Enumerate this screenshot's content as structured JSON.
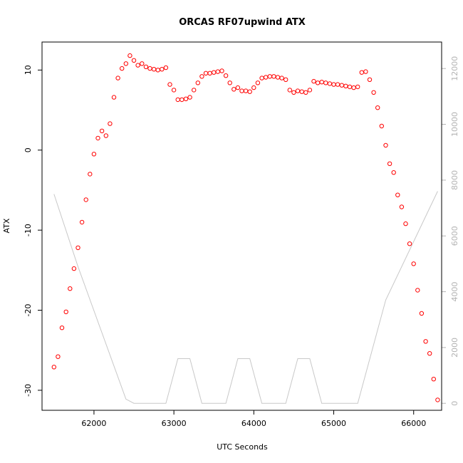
{
  "chart_data": {
    "type": "scatter",
    "title": "ORCAS RF07upwind ATX",
    "xlabel": "UTC Seconds",
    "ylabel": "ATX",
    "xlim": [
      61350,
      66350
    ],
    "ylim": [
      -32.5,
      13.5
    ],
    "y2lim": [
      -250,
      12950
    ],
    "x_ticks": [
      62000,
      63000,
      64000,
      65000,
      66000
    ],
    "y_ticks": [
      10,
      0,
      -10,
      -20,
      -30
    ],
    "y2_ticks": [
      0,
      2000,
      4000,
      6000,
      8000,
      10000,
      12000
    ],
    "colors": {
      "points": "#ff0000",
      "altitude_line": "#c8c8c8",
      "right_axis": "#b3b3b3",
      "frame": "#000000"
    },
    "series": [
      {
        "marker": "open-circle",
        "color": "#ff0000",
        "points": [
          [
            61500,
            -27.1
          ],
          [
            61550,
            -25.8
          ],
          [
            61600,
            -22.2
          ],
          [
            61650,
            -20.2
          ],
          [
            61700,
            -17.3
          ],
          [
            61750,
            -14.8
          ],
          [
            61800,
            -12.2
          ],
          [
            61850,
            -9.0
          ],
          [
            61900,
            -6.2
          ],
          [
            61950,
            -3.0
          ],
          [
            62000,
            -0.5
          ],
          [
            62050,
            1.5
          ],
          [
            62100,
            2.4
          ],
          [
            62150,
            1.8
          ],
          [
            62200,
            3.3
          ],
          [
            62250,
            6.6
          ],
          [
            62300,
            9.0
          ],
          [
            62350,
            10.2
          ],
          [
            62400,
            10.8
          ],
          [
            62450,
            11.8
          ],
          [
            62500,
            11.2
          ],
          [
            62550,
            10.6
          ],
          [
            62600,
            10.8
          ],
          [
            62650,
            10.4
          ],
          [
            62700,
            10.2
          ],
          [
            62750,
            10.1
          ],
          [
            62800,
            10.0
          ],
          [
            62850,
            10.1
          ],
          [
            62900,
            10.3
          ],
          [
            62950,
            8.2
          ],
          [
            63000,
            7.5
          ],
          [
            63050,
            6.3
          ],
          [
            63100,
            6.3
          ],
          [
            63150,
            6.4
          ],
          [
            63200,
            6.6
          ],
          [
            63250,
            7.5
          ],
          [
            63300,
            8.4
          ],
          [
            63350,
            9.2
          ],
          [
            63400,
            9.6
          ],
          [
            63450,
            9.6
          ],
          [
            63500,
            9.7
          ],
          [
            63550,
            9.8
          ],
          [
            63600,
            9.9
          ],
          [
            63650,
            9.3
          ],
          [
            63700,
            8.4
          ],
          [
            63750,
            7.6
          ],
          [
            63800,
            7.8
          ],
          [
            63850,
            7.4
          ],
          [
            63900,
            7.4
          ],
          [
            63950,
            7.3
          ],
          [
            64000,
            7.8
          ],
          [
            64050,
            8.4
          ],
          [
            64100,
            9.0
          ],
          [
            64150,
            9.1
          ],
          [
            64200,
            9.2
          ],
          [
            64250,
            9.2
          ],
          [
            64300,
            9.1
          ],
          [
            64350,
            9.0
          ],
          [
            64400,
            8.8
          ],
          [
            64450,
            7.5
          ],
          [
            64500,
            7.2
          ],
          [
            64550,
            7.4
          ],
          [
            64600,
            7.3
          ],
          [
            64650,
            7.2
          ],
          [
            64700,
            7.5
          ],
          [
            64750,
            8.6
          ],
          [
            64800,
            8.4
          ],
          [
            64850,
            8.5
          ],
          [
            64900,
            8.4
          ],
          [
            64950,
            8.3
          ],
          [
            65000,
            8.2
          ],
          [
            65050,
            8.2
          ],
          [
            65100,
            8.1
          ],
          [
            65150,
            8.0
          ],
          [
            65200,
            7.9
          ],
          [
            65250,
            7.8
          ],
          [
            65300,
            7.9
          ],
          [
            65350,
            9.7
          ],
          [
            65400,
            9.8
          ],
          [
            65450,
            8.8
          ],
          [
            65500,
            7.2
          ],
          [
            65550,
            5.3
          ],
          [
            65600,
            3.0
          ],
          [
            65650,
            0.6
          ],
          [
            65700,
            -1.7
          ],
          [
            65750,
            -2.8
          ],
          [
            65800,
            -5.6
          ],
          [
            65850,
            -7.1
          ],
          [
            65900,
            -9.2
          ],
          [
            65950,
            -11.7
          ],
          [
            66000,
            -14.2
          ],
          [
            66050,
            -17.5
          ],
          [
            66100,
            -20.4
          ],
          [
            66150,
            -23.9
          ],
          [
            66200,
            -25.4
          ],
          [
            66250,
            -28.6
          ],
          [
            66300,
            -31.2
          ]
        ]
      },
      {
        "axis": "right",
        "style": "line",
        "color": "#c8c8c8",
        "points": [
          [
            61500,
            7500
          ],
          [
            61800,
            4900
          ],
          [
            62400,
            150
          ],
          [
            62500,
            0
          ],
          [
            62900,
            0
          ],
          [
            63050,
            1600
          ],
          [
            63200,
            1600
          ],
          [
            63350,
            0
          ],
          [
            63650,
            0
          ],
          [
            63800,
            1600
          ],
          [
            63950,
            1600
          ],
          [
            64100,
            0
          ],
          [
            64400,
            0
          ],
          [
            64550,
            1600
          ],
          [
            64700,
            1600
          ],
          [
            64850,
            0
          ],
          [
            65300,
            0
          ],
          [
            65650,
            3700
          ],
          [
            66300,
            7600
          ]
        ]
      }
    ]
  }
}
